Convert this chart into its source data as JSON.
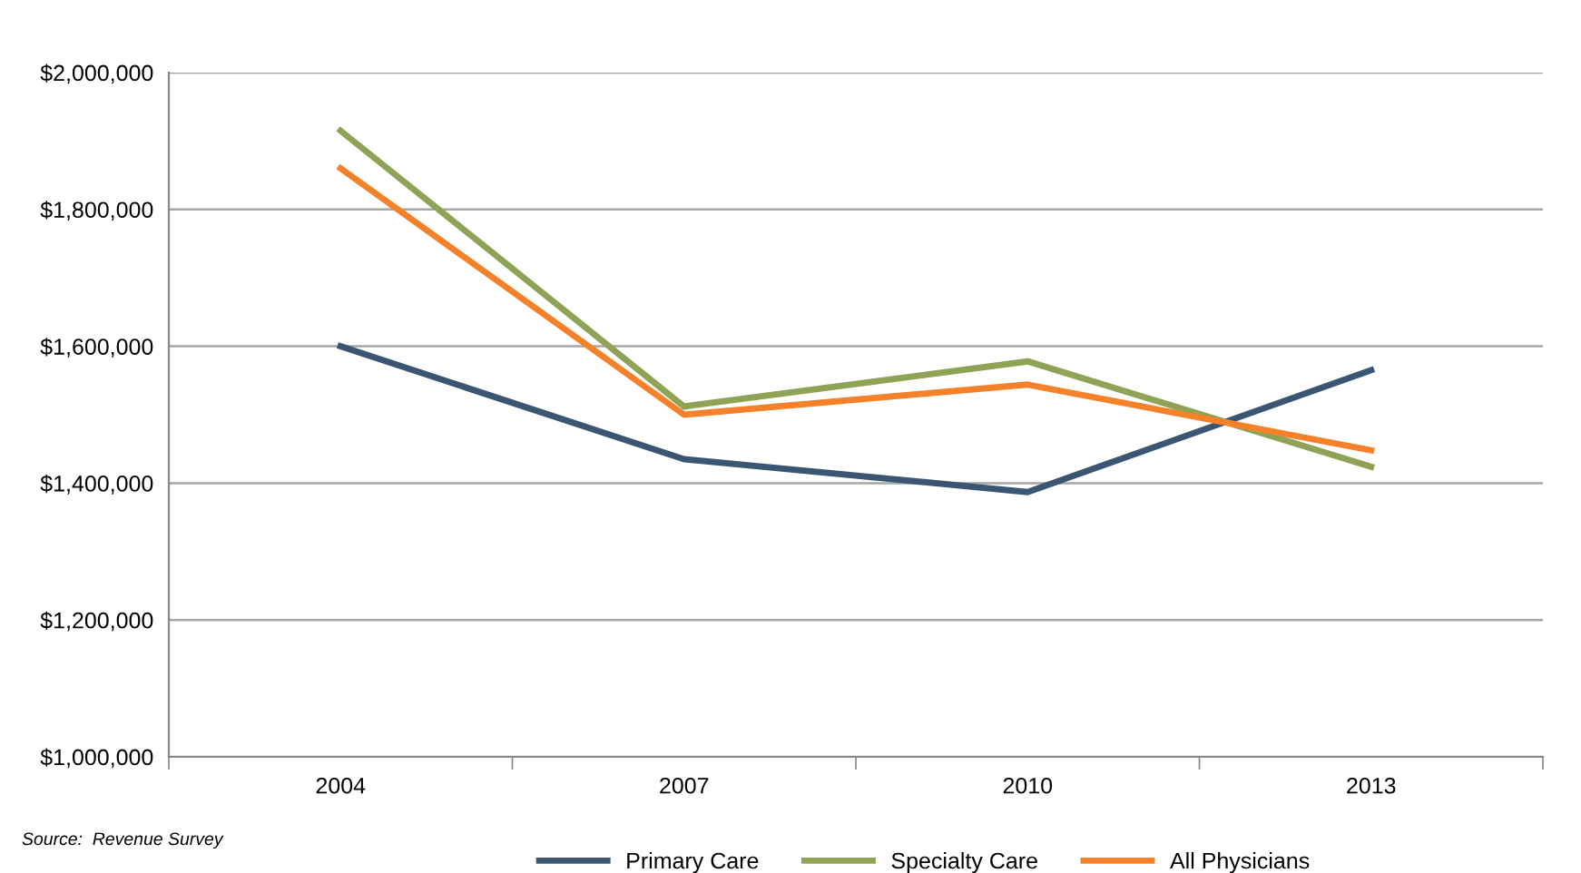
{
  "chart_data": {
    "type": "line",
    "categories": [
      "2004",
      "2007",
      "2010",
      "2013"
    ],
    "series": [
      {
        "name": "Primary Care",
        "color": "#3b5673",
        "values": [
          1600000,
          1435000,
          1387000,
          1565000
        ]
      },
      {
        "name": "Specialty Care",
        "color": "#8ea356",
        "values": [
          1915000,
          1512000,
          1578000,
          1424000
        ]
      },
      {
        "name": "All Physicians",
        "color": "#f5822a",
        "values": [
          1860000,
          1500000,
          1544000,
          1448000
        ]
      }
    ],
    "ylim": [
      1000000,
      2000000
    ],
    "yticks": [
      {
        "value": 1000000,
        "label": "$1,000,000"
      },
      {
        "value": 1200000,
        "label": "$1,200,000"
      },
      {
        "value": 1400000,
        "label": "$1,400,000"
      },
      {
        "value": 1600000,
        "label": "$1,600,000"
      },
      {
        "value": 1800000,
        "label": "$1,800,000"
      },
      {
        "value": 2000000,
        "label": "$2,000,000"
      }
    ],
    "grid": "y",
    "legend": "bottom",
    "marker": "none",
    "line_style": "solid",
    "annotations": [
      "Source:  Revenue Survey"
    ]
  }
}
